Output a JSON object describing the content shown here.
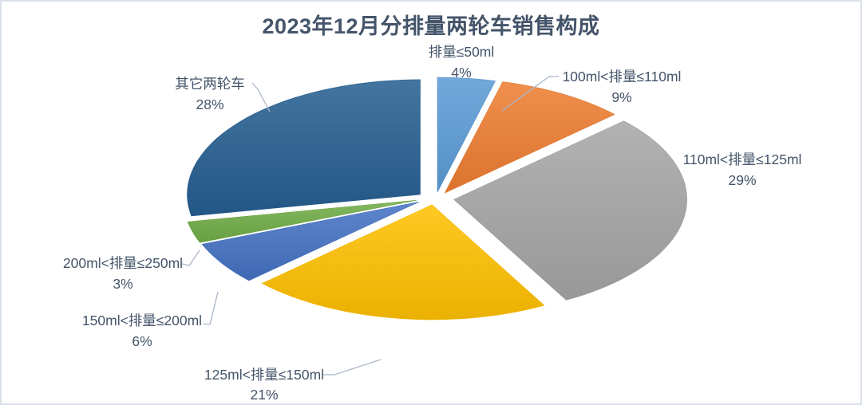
{
  "page": {
    "background_color": "#ffffff",
    "border_color": "#d9e0ea"
  },
  "chart_data": {
    "type": "pie",
    "variant": "3d-exploded",
    "title": "2023年12月分排量两轮车销售构成",
    "title_color": "#44546A",
    "label_color": "#44546A",
    "leader_line_color": "#a9b6c9",
    "legend": "none",
    "labels_position": "outside-with-leader-lines",
    "units": "%",
    "slices": [
      {
        "label": "排量≤50ml",
        "value": 4,
        "pct_label": "4%",
        "color": "#5B9BD5"
      },
      {
        "label": "100ml<排量≤110ml",
        "value": 9,
        "pct_label": "9%",
        "color": "#ED7D31"
      },
      {
        "label": "110ml<排量≤125ml",
        "value": 29,
        "pct_label": "29%",
        "color": "#A5A5A5"
      },
      {
        "label": "125ml<排量≤150ml",
        "value": 21,
        "pct_label": "21%",
        "color": "#FFC000"
      },
      {
        "label": "150ml<排量≤200ml",
        "value": 6,
        "pct_label": "6%",
        "color": "#4472C4"
      },
      {
        "label": "200ml<排量≤250ml",
        "value": 3,
        "pct_label": "3%",
        "color": "#70AD47"
      },
      {
        "label": "其它两轮车",
        "value": 28,
        "pct_label": "28%",
        "color": "#255E91"
      }
    ]
  }
}
